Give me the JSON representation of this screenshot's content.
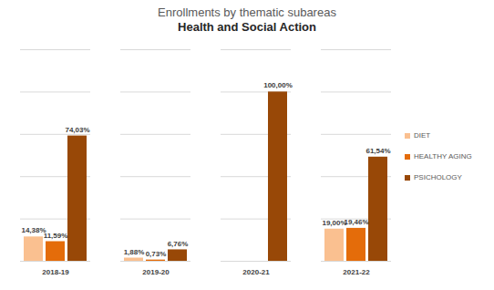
{
  "chart_data": {
    "type": "bar",
    "title": "Enrollments by thematic subareas",
    "subtitle": "Health and Social Action",
    "categories": [
      "2018-19",
      "2019-20",
      "2020-21",
      "2021-22"
    ],
    "series": [
      {
        "name": "DIET",
        "color": "#fac090",
        "values": [
          14.38,
          1.88,
          null,
          19.0
        ],
        "value_labels": [
          "14,38%",
          "1,88%",
          null,
          "19,00%"
        ]
      },
      {
        "name": "HEALTHY AGING",
        "color": "#e46c0a",
        "values": [
          11.59,
          0.73,
          null,
          19.46
        ],
        "value_labels": [
          "11,59%",
          "0,73%",
          null,
          "19,46%"
        ]
      },
      {
        "name": "PSICHOLOGY",
        "color": "#984807",
        "values": [
          74.03,
          6.76,
          100.0,
          61.54
        ],
        "value_labels": [
          "74,03%",
          "6,76%",
          "100,00%",
          "61,54%"
        ]
      }
    ],
    "ylim": [
      0,
      125
    ],
    "yticks": [
      0,
      25,
      50,
      75,
      100,
      125
    ],
    "grid": true,
    "tick_labels": "x",
    "data_labels": true,
    "legend": "right"
  }
}
